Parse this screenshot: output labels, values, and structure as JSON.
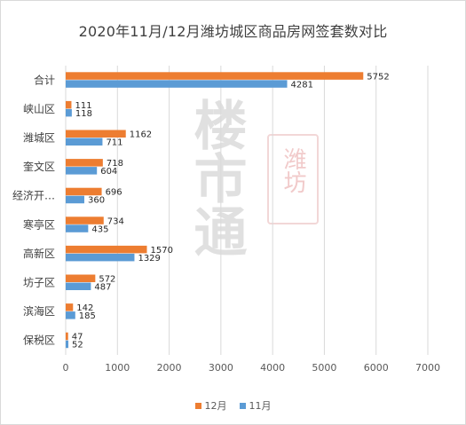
{
  "chart_data": {
    "type": "bar",
    "orientation": "horizontal",
    "title": "2020年11月/12月潍坊城区商品房网签套数对比",
    "categories": [
      "合计",
      "峡山区",
      "潍城区",
      "奎文区",
      "经济开…",
      "寒亭区",
      "高新区",
      "坊子区",
      "滨海区",
      "保税区"
    ],
    "series": [
      {
        "name": "12月",
        "color": "#ED7D31",
        "values": [
          5752,
          111,
          1162,
          718,
          696,
          734,
          1570,
          572,
          142,
          47
        ]
      },
      {
        "name": "11月",
        "color": "#5B9BD5",
        "values": [
          4281,
          118,
          711,
          604,
          360,
          435,
          1329,
          487,
          185,
          52
        ]
      }
    ],
    "xlim": [
      0,
      7000
    ],
    "xticks": [
      0,
      1000,
      2000,
      3000,
      4000,
      5000,
      6000,
      7000
    ],
    "grid": true,
    "legend_position": "bottom"
  },
  "watermark": {
    "logo_text": "潍坊",
    "calligraphy_text": "楼市通"
  }
}
